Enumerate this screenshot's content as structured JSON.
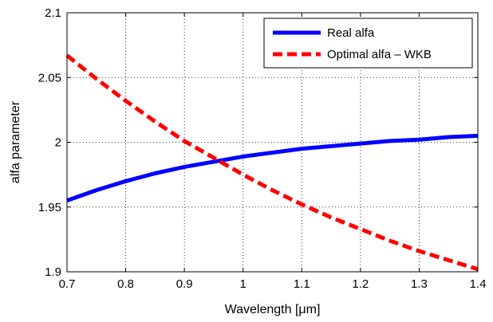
{
  "chart_data": {
    "type": "line",
    "xlabel": "Wavelength [μm]",
    "ylabel": "alfa parameter",
    "xlim": [
      0.7,
      1.4
    ],
    "ylim": [
      1.9,
      2.1
    ],
    "xticks": [
      0.7,
      0.8,
      0.9,
      1.0,
      1.1,
      1.2,
      1.3,
      1.4
    ],
    "xtick_labels": [
      "0.7",
      "0.8",
      "0.9",
      "1",
      "1.1",
      "1.2",
      "1.3",
      "1.4"
    ],
    "yticks": [
      1.9,
      1.95,
      2.0,
      2.05,
      2.1
    ],
    "ytick_labels": [
      "1.9",
      "1.95",
      "2",
      "2.05",
      "2.1"
    ],
    "grid": true,
    "legend_position": "top-right",
    "x": [
      0.7,
      0.75,
      0.8,
      0.85,
      0.9,
      0.95,
      1.0,
      1.05,
      1.1,
      1.15,
      1.2,
      1.25,
      1.3,
      1.35,
      1.4
    ],
    "series": [
      {
        "name": "Real alfa",
        "color": "#0000ff",
        "style": "solid",
        "values": [
          1.955,
          1.963,
          1.97,
          1.976,
          1.981,
          1.985,
          1.989,
          1.992,
          1.995,
          1.997,
          1.999,
          2.001,
          2.002,
          2.004,
          2.005
        ]
      },
      {
        "name": "Optimal alfa – WKB",
        "color": "#ff0000",
        "style": "dashed",
        "values": [
          2.067,
          2.049,
          2.032,
          2.016,
          2.001,
          1.988,
          1.975,
          1.963,
          1.952,
          1.942,
          1.933,
          1.924,
          1.916,
          1.909,
          1.902
        ]
      }
    ]
  }
}
